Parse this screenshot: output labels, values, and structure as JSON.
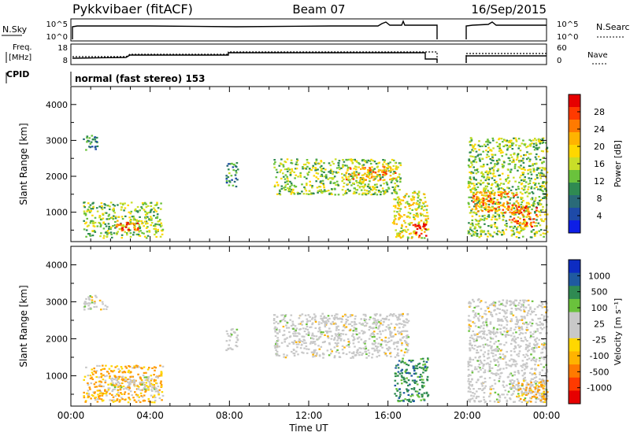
{
  "header": {
    "title": "Pykkvibaer (fitACF)",
    "beam": "Beam 07",
    "date": "16/Sep/2015"
  },
  "status_panels": {
    "nsky_label": "N.Sky",
    "nsearch_label": "N.Search",
    "noise_ticks": [
      "10^5",
      "10^0"
    ],
    "freq_label_line1": "Freq.",
    "freq_label_line2": "[MHz]",
    "freq_ticks": [
      "18",
      "8"
    ],
    "nave_label": "Nave",
    "nave_ticks": [
      "60",
      "0"
    ],
    "cpid_label": "CPID",
    "cpid_text": "normal (fast stereo) 153"
  },
  "chart_data": [
    {
      "type": "heatmap",
      "name": "power",
      "ylabel": "Slant Range [km]",
      "ylim": [
        180,
        4500
      ],
      "yticks": [
        1000,
        2000,
        3000,
        4000
      ],
      "xlim": [
        0,
        24
      ],
      "colorbar": {
        "label": "Power [dB]",
        "ticks": [
          "28",
          "24",
          "20",
          "16",
          "12",
          "8",
          "4"
        ],
        "colors": [
          "#e60000",
          "#ff3a00",
          "#ff7a00",
          "#ffb300",
          "#ffd700",
          "#c9de28",
          "#6ac23c",
          "#2f8a52",
          "#2a6a78",
          "#1e4aa8",
          "#0d1ee6"
        ]
      },
      "regions": [
        {
          "t0": 0.6,
          "t1": 1.3,
          "r0": 2700,
          "r1": 3200,
          "level": 0.3
        },
        {
          "t0": 0.6,
          "t1": 4.6,
          "r0": 300,
          "r1": 1300,
          "level": 0.45
        },
        {
          "t0": 2.2,
          "t1": 3.4,
          "r0": 500,
          "r1": 800,
          "level": 0.85
        },
        {
          "t0": 7.8,
          "t1": 8.4,
          "r0": 1700,
          "r1": 2400,
          "level": 0.3
        },
        {
          "t0": 10.2,
          "t1": 16.6,
          "r0": 1500,
          "r1": 2500,
          "level": 0.45
        },
        {
          "t0": 13.8,
          "t1": 16.4,
          "r0": 1900,
          "r1": 2300,
          "level": 0.7
        },
        {
          "t0": 16.2,
          "t1": 18.0,
          "r0": 300,
          "r1": 1600,
          "level": 0.55
        },
        {
          "t0": 17.2,
          "t1": 17.9,
          "r0": 300,
          "r1": 700,
          "level": 0.95
        },
        {
          "t0": 20.0,
          "t1": 24.0,
          "r0": 300,
          "r1": 3100,
          "level": 0.45
        },
        {
          "t0": 20.2,
          "t1": 22.6,
          "r0": 1000,
          "r1": 1600,
          "level": 0.75
        },
        {
          "t0": 22.0,
          "t1": 23.5,
          "r0": 600,
          "r1": 1200,
          "level": 0.8
        }
      ]
    },
    {
      "type": "heatmap",
      "name": "velocity",
      "ylabel": "Slant Range [km]",
      "ylim": [
        180,
        4500
      ],
      "yticks": [
        1000,
        2000,
        3000,
        4000
      ],
      "xlim": [
        0,
        24
      ],
      "xticks": [
        "00:00",
        "04:00",
        "08:00",
        "12:00",
        "16:00",
        "20:00",
        "00:00"
      ],
      "xlabel": "Time UT",
      "colorbar": {
        "label": "Velocity [m s⁻¹]",
        "ticks": [
          "1000",
          "500",
          "100",
          "25",
          "-25",
          "-100",
          "-500",
          "-1000"
        ],
        "colors": [
          "#0d2cc2",
          "#1f5aa0",
          "#2f8a52",
          "#6ac23c",
          "#c8c8c8",
          "#c8c8c8",
          "#ffd700",
          "#ffb300",
          "#ff7a00",
          "#ff3a00",
          "#e60000"
        ]
      },
      "regions": [
        {
          "t0": 0.6,
          "t1": 1.8,
          "r0": 2800,
          "r1": 3200,
          "level": "grey"
        },
        {
          "t0": 0.6,
          "t1": 4.6,
          "r0": 300,
          "r1": 1300,
          "level": "orange"
        },
        {
          "t0": 2.0,
          "t1": 4.4,
          "r0": 600,
          "r1": 1000,
          "level": "grey"
        },
        {
          "t0": 7.8,
          "t1": 8.4,
          "r0": 1700,
          "r1": 2300,
          "level": "grey"
        },
        {
          "t0": 10.2,
          "t1": 17.0,
          "r0": 1500,
          "r1": 2700,
          "level": "grey"
        },
        {
          "t0": 16.3,
          "t1": 18.0,
          "r0": 300,
          "r1": 1500,
          "level": "green"
        },
        {
          "t0": 20.0,
          "t1": 24.0,
          "r0": 300,
          "r1": 3100,
          "level": "grey"
        },
        {
          "t0": 22.5,
          "t1": 24.0,
          "r0": 300,
          "r1": 900,
          "level": "orange"
        }
      ]
    }
  ]
}
